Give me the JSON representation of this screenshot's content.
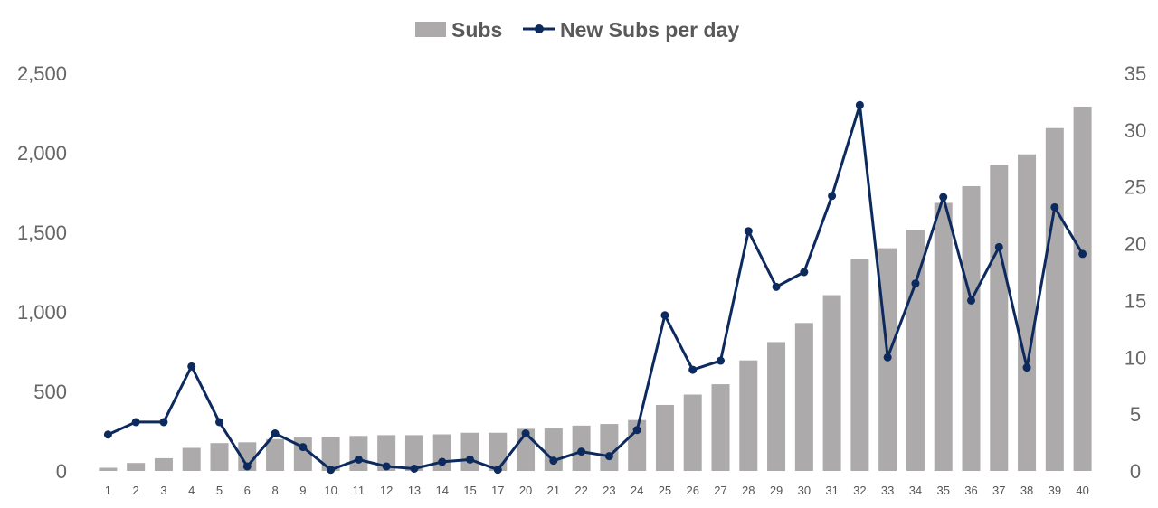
{
  "chart_data": {
    "type": "bar",
    "categories": [
      "1",
      "2",
      "3",
      "4",
      "5",
      "6",
      "8",
      "9",
      "10",
      "11",
      "12",
      "13",
      "14",
      "15",
      "17",
      "20",
      "21",
      "22",
      "23",
      "24",
      "25",
      "26",
      "27",
      "28",
      "29",
      "30",
      "31",
      "32",
      "33",
      "34",
      "35",
      "36",
      "37",
      "38",
      "39",
      "40"
    ],
    "series": [
      {
        "name": "Subs",
        "type": "bar",
        "axis": "left",
        "color": "#ADAAAB",
        "values": [
          20,
          50,
          80,
          145,
          175,
          180,
          200,
          210,
          215,
          220,
          225,
          225,
          230,
          240,
          240,
          265,
          270,
          285,
          295,
          320,
          415,
          480,
          545,
          695,
          810,
          930,
          1105,
          1330,
          1400,
          1515,
          1685,
          1790,
          1925,
          1990,
          2155,
          2290
        ]
      },
      {
        "name": "New Subs per day",
        "type": "line",
        "axis": "right",
        "color": "#0D2A5E",
        "values": [
          3.2,
          4.3,
          4.3,
          9.2,
          4.3,
          0.4,
          3.3,
          2.1,
          0.1,
          1.0,
          0.4,
          0.2,
          0.8,
          1.0,
          0.1,
          3.3,
          0.9,
          1.7,
          1.3,
          3.6,
          13.7,
          8.9,
          9.7,
          21.1,
          16.2,
          17.5,
          24.2,
          32.2,
          10.0,
          16.5,
          24.1,
          15.0,
          19.7,
          9.1,
          23.2,
          19.1
        ]
      }
    ],
    "y_left": {
      "min": 0,
      "max": 2500,
      "ticks": [
        "0",
        "500",
        "1,000",
        "1,500",
        "2,000",
        "2,500"
      ]
    },
    "y_right": {
      "min": 0,
      "max": 35,
      "ticks": [
        "0",
        "5",
        "10",
        "15",
        "20",
        "25",
        "30",
        "35"
      ]
    },
    "legend": {
      "position": "top-center",
      "items": [
        "Subs",
        "New Subs per day"
      ]
    },
    "grid": false
  }
}
